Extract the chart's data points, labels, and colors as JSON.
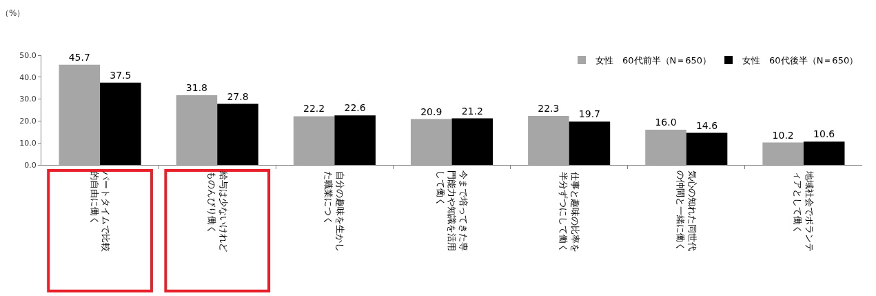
{
  "chart_data": {
    "type": "bar",
    "ylabel": "（%）",
    "categories": [
      "パートタイムで比較的自由に働く",
      "給与は少ないけれどものんびり働く",
      "自分の趣味を生かした職業につく",
      "今まで培ってきた専門能力や知識を活用して働く",
      "仕事と趣味の比率を半分ずつにして働く",
      "気心の知れた同世代の仲間と一緒に働く",
      "地域社会でボランティアとして働く"
    ],
    "series": [
      {
        "name": "女性　60代前半（N＝650）",
        "color": "#a6a6a6",
        "values": [
          45.7,
          31.8,
          22.2,
          20.9,
          22.3,
          16.0,
          10.2
        ],
        "value_labels": [
          "45.7",
          "31.8",
          "22.2",
          "20.9",
          "22.3",
          "16.0",
          "10.2"
        ]
      },
      {
        "name": "女性　60代後半（N＝650）",
        "color": "#000000",
        "values": [
          37.5,
          27.8,
          22.6,
          21.2,
          19.7,
          14.6,
          10.6
        ],
        "value_labels": [
          "37.5",
          "27.8",
          "22.6",
          "21.2",
          "19.7",
          "14.6",
          "10.6"
        ]
      }
    ],
    "ylim": [
      0,
      50
    ],
    "yticks": [
      {
        "value": 0,
        "label": "0.0"
      },
      {
        "value": 10,
        "label": "10.0"
      },
      {
        "value": 20,
        "label": "20.0"
      },
      {
        "value": 30,
        "label": "30.0"
      },
      {
        "value": 40,
        "label": "40.0"
      },
      {
        "value": 50,
        "label": "50.0"
      }
    ],
    "grid": false,
    "legend": "top right"
  }
}
